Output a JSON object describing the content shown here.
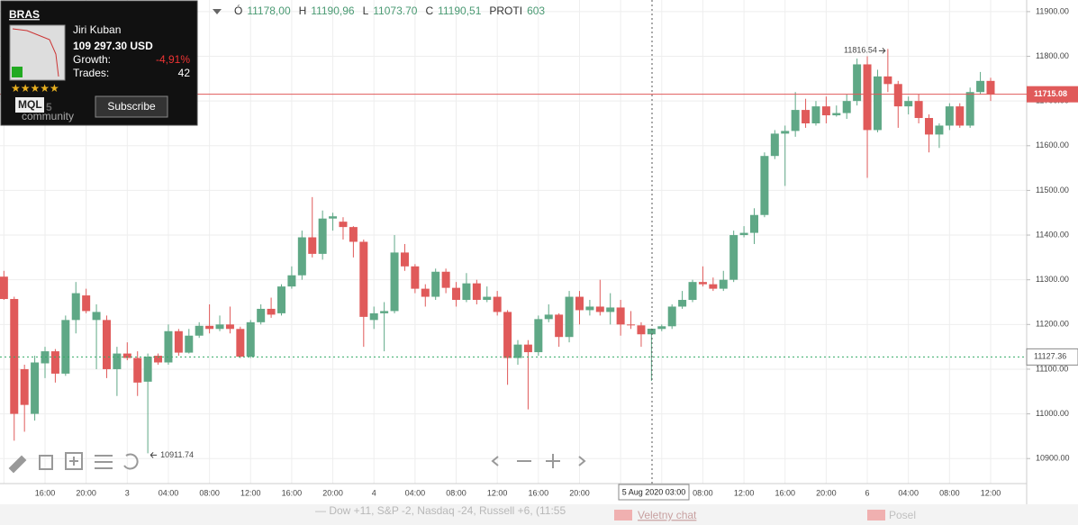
{
  "chart_data": {
    "type": "candlestick",
    "categories": [
      null,
      null,
      null,
      null,
      "16:00",
      null,
      null,
      null,
      "20:00",
      null,
      null,
      null,
      "3",
      null,
      null,
      null,
      "04:00",
      null,
      null,
      null,
      "08:00",
      null,
      null,
      null,
      "12:00",
      null,
      null,
      null,
      "16:00",
      null,
      null,
      null,
      "20:00",
      null,
      null,
      null,
      "4",
      null,
      null,
      null,
      "04:00",
      null,
      null,
      null,
      "08:00",
      null,
      null,
      null,
      "12:00",
      null,
      null,
      null,
      "16:00",
      null,
      null,
      null,
      "20:00",
      null,
      null,
      null,
      null,
      null,
      null,
      null,
      null,
      null,
      null,
      null,
      "08:00",
      null,
      null,
      null,
      "12:00",
      null,
      null,
      null,
      "16:00",
      null,
      null,
      null,
      "20:00",
      null,
      null,
      null,
      "6",
      null,
      null,
      null,
      "04:00",
      null,
      null,
      null,
      "08:00",
      null,
      null,
      null,
      "12:00"
    ],
    "open": [
      11307,
      11257,
      11100,
      11000,
      11113,
      11140,
      11090,
      11210,
      11265,
      11210,
      11210,
      11100,
      11135,
      11125,
      11072,
      11130,
      11115,
      11185,
      11137,
      11175,
      11197,
      11190,
      11200,
      11190,
      11128,
      11205,
      11235,
      11225,
      11285,
      11310,
      11395,
      11358,
      11437,
      11430,
      11418,
      11385,
      11210,
      11225,
      11230,
      11361,
      11330,
      11280,
      11262,
      11318,
      11282,
      11255,
      11292,
      11255,
      11262,
      11228,
      11125,
      11155,
      11138,
      11212,
      11222,
      11172,
      11262,
      11232,
      11240,
      11228,
      11238,
      11200,
      11198,
      11178,
      11190,
      11196,
      11240,
      11255,
      11295,
      11290,
      11280,
      11300,
      11400,
      11405,
      11445,
      11577,
      11627,
      11633,
      11680,
      11650,
      11688,
      11668,
      11673,
      11700,
      11782,
      11635,
      11755,
      11738,
      11688,
      11700,
      11662,
      11625,
      11645,
      11688,
      11645,
      11720,
      11745
    ],
    "high": [
      11320,
      11262,
      11110,
      11130,
      11150,
      11145,
      11220,
      11295,
      11280,
      11245,
      11220,
      11150,
      11160,
      11140,
      11135,
      11135,
      11200,
      11190,
      11190,
      11205,
      11245,
      11220,
      11240,
      11195,
      11210,
      11245,
      11260,
      11290,
      11330,
      11410,
      11485,
      11455,
      11450,
      11440,
      11420,
      11390,
      11240,
      11250,
      11400,
      11380,
      11335,
      11290,
      11325,
      11325,
      11295,
      11315,
      11300,
      11285,
      11275,
      11232,
      11165,
      11165,
      11220,
      11245,
      11225,
      11275,
      11275,
      11255,
      11300,
      11270,
      11255,
      11230,
      11205,
      11190.96,
      11200,
      11245,
      11275,
      11300,
      11330,
      11305,
      11320,
      11410,
      11420,
      11460,
      11585,
      11635,
      11645,
      11720,
      11705,
      11700,
      11710,
      11690,
      11715,
      11795,
      11800,
      11770,
      11816.54,
      11745,
      11710,
      11715,
      11670,
      11650,
      11695,
      11695,
      11730,
      11765,
      11752
    ],
    "low": [
      11255,
      10940,
      10960,
      10985,
      11080,
      11070,
      11085,
      11180,
      11225,
      11100,
      11080,
      11040,
      11120,
      11040,
      10911.74,
      11110,
      11110,
      11130,
      11135,
      11170,
      11180,
      11185,
      11180,
      11125,
      11125,
      11200,
      11215,
      11220,
      11280,
      11300,
      11350,
      11345,
      11410,
      11390,
      11350,
      11150,
      11190,
      11140,
      11225,
      11320,
      11270,
      11240,
      11255,
      11270,
      11240,
      11250,
      11245,
      11250,
      11220,
      11065,
      11110,
      11010,
      11130,
      11205,
      11150,
      11160,
      11200,
      11220,
      11220,
      11200,
      11175,
      11190,
      11150,
      11073.7,
      11185,
      11190,
      11235,
      11250,
      11285,
      11275,
      11275,
      11295,
      11395,
      11380,
      11440,
      11570,
      11510,
      11620,
      11640,
      11645,
      11650,
      11665,
      11660,
      11690,
      11528,
      11630,
      11720,
      11640,
      11670,
      11650,
      11585,
      11595,
      11635,
      11640,
      11640,
      11715,
      11700
    ],
    "close": [
      11257,
      11000,
      11020,
      11115,
      11140,
      11090,
      11210,
      11270,
      11230,
      11228,
      11100,
      11135,
      11125,
      11070,
      11128,
      11115,
      11185,
      11137,
      11175,
      11197,
      11190,
      11200,
      11190,
      11128,
      11205,
      11235,
      11222,
      11285,
      11310,
      11395,
      11358,
      11437,
      11442,
      11418,
      11385,
      11217,
      11225,
      11230,
      11361,
      11330,
      11280,
      11262,
      11318,
      11282,
      11255,
      11292,
      11255,
      11262,
      11228,
      11125,
      11155,
      11138,
      11212,
      11222,
      11172,
      11262,
      11232,
      11240,
      11228,
      11238,
      11200,
      11198,
      11178,
      11190.51,
      11196,
      11240,
      11255,
      11295,
      11290,
      11280,
      11300,
      11400,
      11405,
      11445,
      11577,
      11627,
      11633,
      11680,
      11650,
      11688,
      11668,
      11673,
      11700,
      11782,
      11635,
      11755,
      11738,
      11688,
      11700,
      11662,
      11625,
      11645,
      11688,
      11645,
      11720,
      11745,
      11715.08
    ],
    "up_color": "#5fa886",
    "down_color": "#e05a5a",
    "ylim": [
      10844,
      11926
    ],
    "yticks": [
      {
        "value": 10900,
        "label": "10900.00"
      },
      {
        "value": 11000,
        "label": "11000.00"
      },
      {
        "value": 11100,
        "label": "11100.00"
      },
      {
        "value": 11200,
        "label": "11200.00"
      },
      {
        "value": 11300,
        "label": "11300.00"
      },
      {
        "value": 11400,
        "label": "11400.00"
      },
      {
        "value": 11500,
        "label": "11500.00"
      },
      {
        "value": 11600,
        "label": "11600.00"
      },
      {
        "value": 11700,
        "label": "11700.00"
      },
      {
        "value": 11800,
        "label": "11800.00"
      },
      {
        "value": 11900,
        "label": "11900.00"
      }
    ],
    "grid": true,
    "crosshair_price": 11127.36,
    "crosshair_time": "5 Aug 2020 03:00"
  },
  "ohlc_header": [
    {
      "key": "Ó",
      "value": "11178,00"
    },
    {
      "key": "H",
      "value": "11190,96"
    },
    {
      "key": "L",
      "value": "11073.70"
    },
    {
      "key": "C",
      "value": "11190,51"
    },
    {
      "key": "PROTI",
      "value": "603"
    }
  ],
  "widget": {
    "symbol": "BRAS",
    "author": "Jiri Kuban",
    "balance": "109 297.30 USD",
    "growth_label": "Growth:",
    "growth": "-4,91%",
    "trades_label": "Trades:",
    "trades": "42",
    "logo": "MQL",
    "logo_num": "5",
    "logo_sub": "community",
    "button": "Subscribe"
  },
  "footer": {
    "ticker": "— Dow +11, S&P -2, Nasdaq -24, Russell +6, (11:55",
    "chat": "Veletny chat",
    "post": "Posel"
  }
}
